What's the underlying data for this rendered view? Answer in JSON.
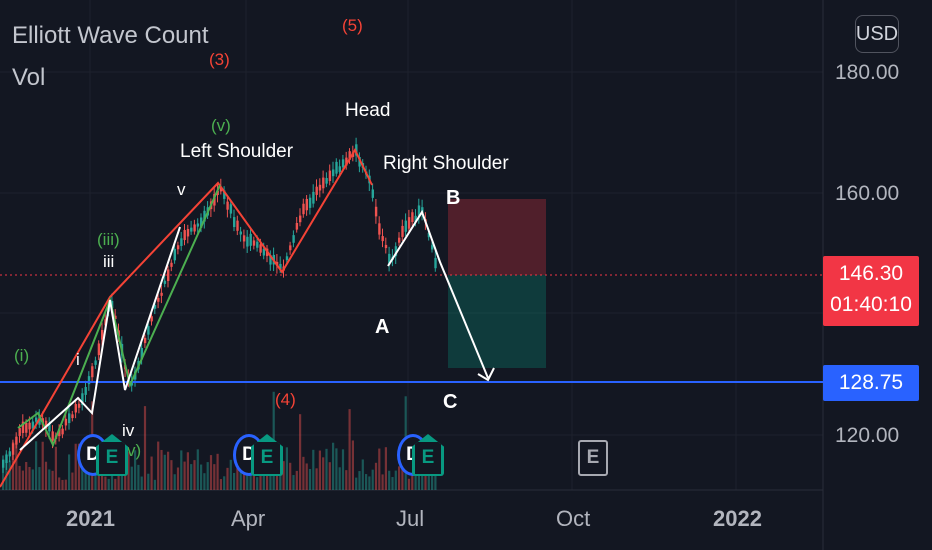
{
  "header": {
    "title": "Elliott Wave Count",
    "volume_label": "Vol",
    "currency_button": "USD"
  },
  "price_axis": {
    "ticks": [
      "180.00",
      "160.00",
      "120.00"
    ]
  },
  "time_axis": {
    "ticks": [
      "2021",
      "Apr",
      "Jul",
      "Oct",
      "2022"
    ]
  },
  "current_price": {
    "value": "146.30",
    "countdown": "01:40:10",
    "color": "#f23645"
  },
  "level_line": {
    "value": "128.75",
    "color": "#2962ff"
  },
  "wave_labels": {
    "w_i_green": "(i)",
    "w_i_white": "i",
    "w_iii_green": "(iii)",
    "w_iii_white": "iii",
    "w_iv_white": "iv",
    "w_v_green_low": "v)",
    "w_v_white": "v",
    "w_v_green": "(v)",
    "w_3_red": "(3)",
    "w_4_red": "(4)",
    "w_5_red": "(5)"
  },
  "annotations": {
    "left_shoulder": "Left Shoulder",
    "head": "Head",
    "right_shoulder": "Right Shoulder",
    "a": "A",
    "b": "B",
    "c": "C"
  },
  "event_badges": {
    "dividend": "D",
    "earnings": "E"
  },
  "colors": {
    "background": "#131722",
    "up_candle": "#26a69a",
    "down_candle": "#ef5350",
    "wave_red": "#f44336",
    "wave_green": "#4caf50",
    "wave_white": "#ffffff"
  }
}
